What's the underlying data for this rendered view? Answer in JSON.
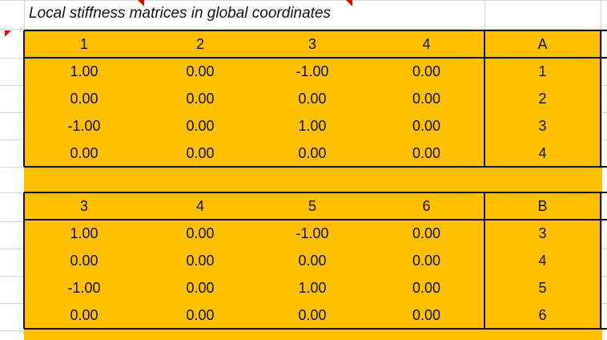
{
  "title": "Local stiffness matrices in global coordinates",
  "tables": [
    {
      "headers": [
        "1",
        "2",
        "3",
        "4"
      ],
      "label": "A",
      "rows": [
        [
          "1.00",
          "0.00",
          "-1.00",
          "0.00"
        ],
        [
          "0.00",
          "0.00",
          "0.00",
          "0.00"
        ],
        [
          "-1.00",
          "0.00",
          "1.00",
          "0.00"
        ],
        [
          "0.00",
          "0.00",
          "0.00",
          "0.00"
        ]
      ],
      "dofs": [
        "1",
        "2",
        "3",
        "4"
      ]
    },
    {
      "headers": [
        "3",
        "4",
        "5",
        "6"
      ],
      "label": "B",
      "rows": [
        [
          "1.00",
          "0.00",
          "-1.00",
          "0.00"
        ],
        [
          "0.00",
          "0.00",
          "0.00",
          "0.00"
        ],
        [
          "-1.00",
          "0.00",
          "1.00",
          "0.00"
        ],
        [
          "0.00",
          "0.00",
          "0.00",
          "0.00"
        ]
      ],
      "dofs": [
        "3",
        "4",
        "5",
        "6"
      ]
    }
  ]
}
